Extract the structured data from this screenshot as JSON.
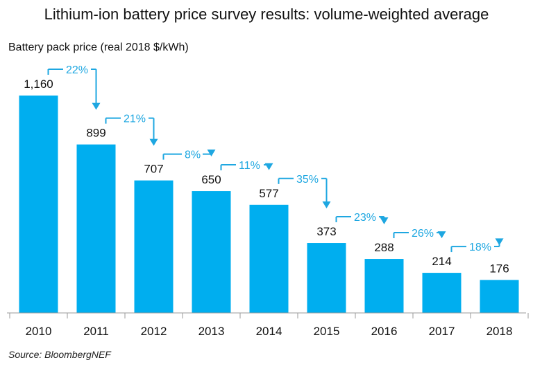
{
  "title": "Lithium-ion battery price survey results: volume-weighted average",
  "source": "Source: BloombergNEF",
  "colors": {
    "bar": "#00aeef",
    "arrow": "#1ea7e1",
    "axis": "#999999",
    "text": "#111111"
  },
  "chart_data": {
    "type": "bar",
    "ylabel": "Battery pack price (real 2018 $/kWh)",
    "categories": [
      "2010",
      "2011",
      "2012",
      "2013",
      "2014",
      "2015",
      "2016",
      "2017",
      "2018"
    ],
    "values": [
      1160,
      899,
      707,
      650,
      577,
      373,
      288,
      214,
      176
    ],
    "value_labels": [
      "1,160",
      "899",
      "707",
      "650",
      "577",
      "373",
      "288",
      "214",
      "176"
    ],
    "annotations": [
      {
        "from": "2010",
        "to": "2011",
        "label": "22%"
      },
      {
        "from": "2011",
        "to": "2012",
        "label": "21%"
      },
      {
        "from": "2012",
        "to": "2013",
        "label": "8%"
      },
      {
        "from": "2013",
        "to": "2014",
        "label": "11%"
      },
      {
        "from": "2014",
        "to": "2015",
        "label": "35%"
      },
      {
        "from": "2015",
        "to": "2016",
        "label": "23%"
      },
      {
        "from": "2016",
        "to": "2017",
        "label": "26%"
      },
      {
        "from": "2017",
        "to": "2018",
        "label": "18%"
      }
    ],
    "ylim": [
      0,
      1160
    ],
    "grid": false
  }
}
